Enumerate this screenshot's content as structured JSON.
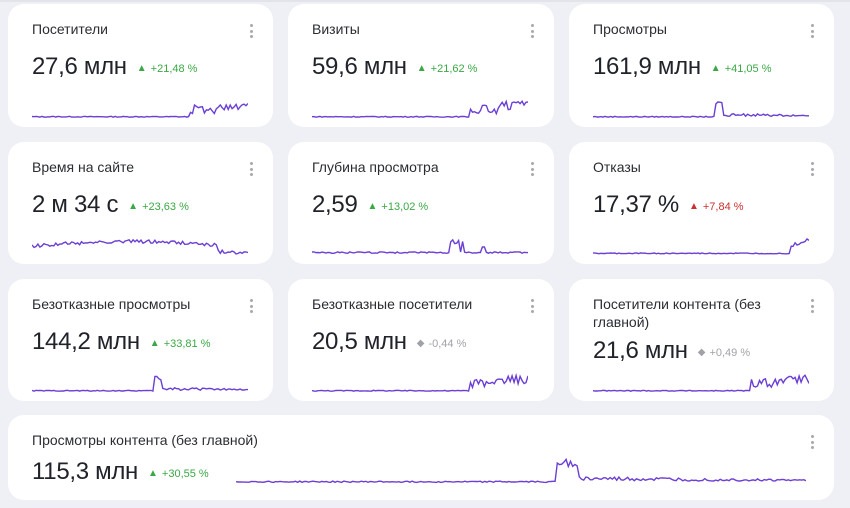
{
  "colors": {
    "line": "#6b3fd4",
    "up": "#3aa845",
    "down": "#cc2f2f",
    "neutral": "#a0a2a8"
  },
  "cards": [
    {
      "title": "Посетители",
      "value": "27,6 млн",
      "delta": "+21,48 %",
      "trend": "up",
      "shape": "jump"
    },
    {
      "title": "Визиты",
      "value": "59,6 млн",
      "delta": "+21,62 %",
      "trend": "up",
      "shape": "jump"
    },
    {
      "title": "Просмотры",
      "value": "161,9 млн",
      "delta": "+41,05 %",
      "trend": "up",
      "shape": "spike"
    },
    {
      "title": "Время на сайте",
      "value": "2 м 34 с",
      "delta": "+23,63 %",
      "trend": "up",
      "shape": "hill"
    },
    {
      "title": "Глубина просмотра",
      "value": "2,59",
      "delta": "+13,02 %",
      "trend": "up",
      "shape": "bumps"
    },
    {
      "title": "Отказы",
      "value": "17,37 %",
      "delta": "+7,84 %",
      "trend": "down",
      "shape": "endrise"
    },
    {
      "title": "Безотказные просмотры",
      "value": "144,2 млн",
      "delta": "+33,81 %",
      "trend": "up",
      "shape": "spike"
    },
    {
      "title": "Безотказные посетители",
      "value": "20,5 млн",
      "delta": "-0,44 %",
      "trend": "neutral",
      "shape": "jump"
    },
    {
      "title": "Посетители контента (без главной)",
      "value": "21,6 млн",
      "delta": "+0,49 %",
      "trend": "neutral",
      "shape": "jump"
    },
    {
      "title": "Просмотры контента (без главной)",
      "value": "115,3 млн",
      "delta": "+30,55 %",
      "trend": "up",
      "shape": "spike"
    }
  ]
}
